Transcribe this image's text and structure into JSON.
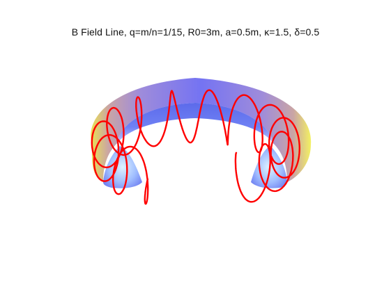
{
  "figure": {
    "title": "B Field Line, q=m/n=1/15, R0=3m, a=0.5m, κ=1.5, δ=0.5"
  },
  "colors": {
    "background": "#ffffff",
    "field_line": "#ff0000",
    "torus_inner": "#5c5cf0",
    "torus_outer_highlight": "#f0e040"
  },
  "torus": {
    "m": 1,
    "n": 15,
    "R0_m": 3,
    "a_m": 0.5,
    "kappa": 1.5,
    "delta": 0.5,
    "cutaway": "front section removed"
  }
}
